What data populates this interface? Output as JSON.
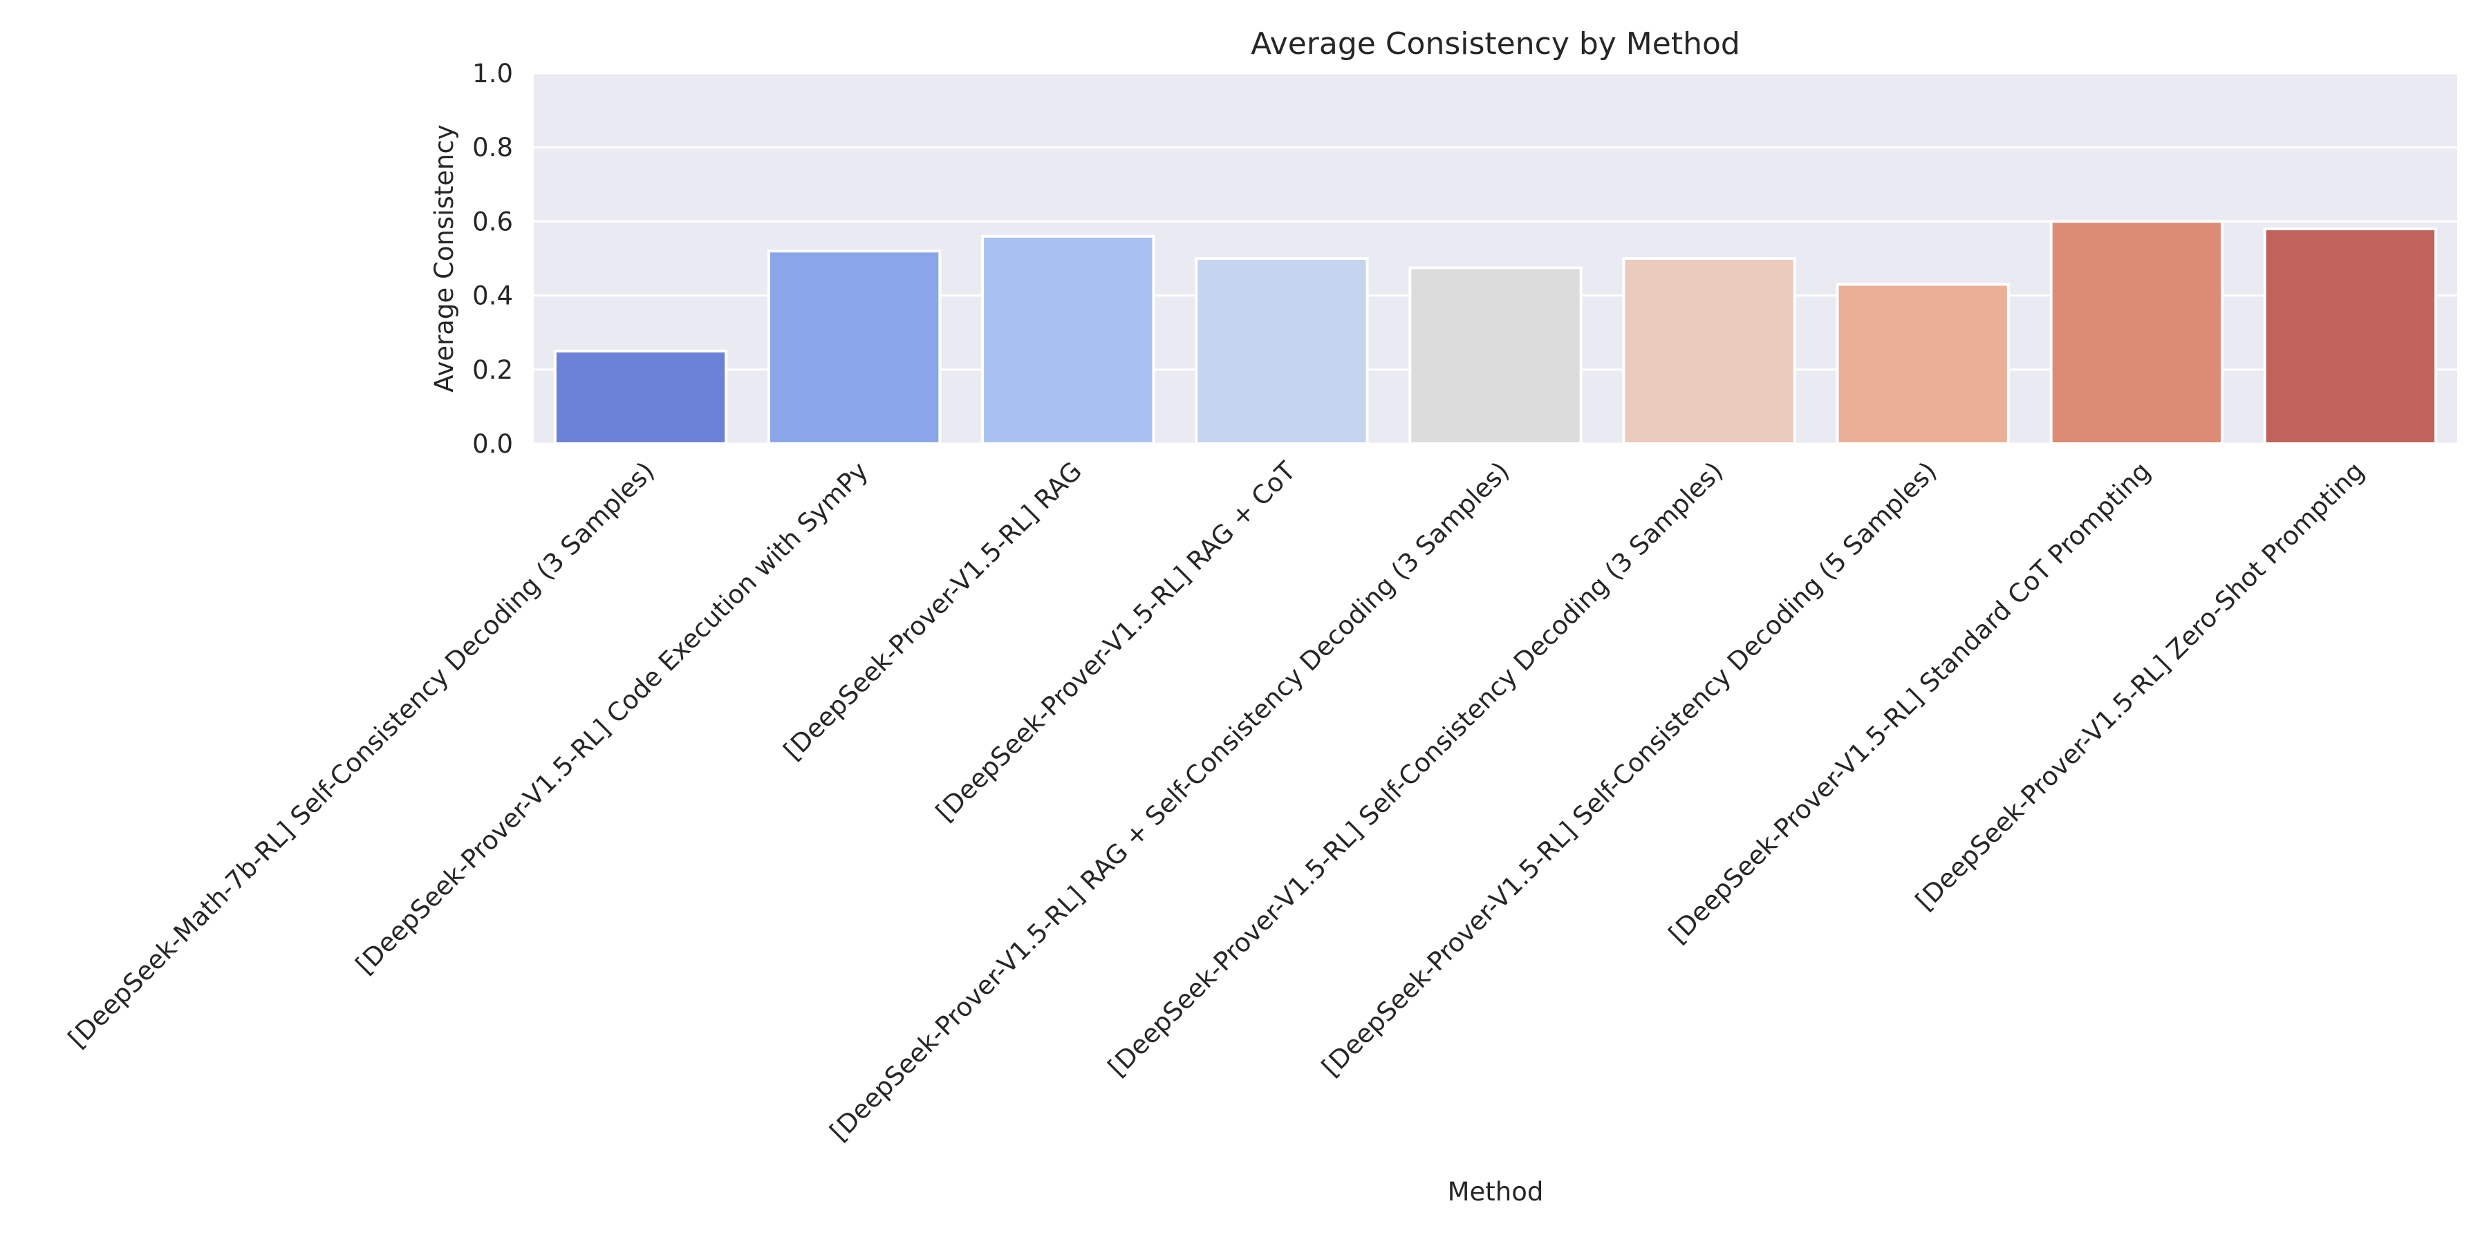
{
  "chart_data": {
    "type": "bar",
    "title": "Average Consistency by Method",
    "xlabel": "Method",
    "ylabel": "Average Consistency",
    "ylim": [
      0,
      1.0
    ],
    "yticks": [
      "0.0",
      "0.2",
      "0.4",
      "0.6",
      "0.8",
      "1.0"
    ],
    "grid": true,
    "categories": [
      "[DeepSeek-Math-7b-RL] Self-Consistency Decoding (3 Samples)",
      "[DeepSeek-Prover-V1.5-RL] Code Execution with SymPy",
      "[DeepSeek-Prover-V1.5-RL] RAG",
      "[DeepSeek-Prover-V1.5-RL] RAG + CoT",
      "[DeepSeek-Prover-V1.5-RL] RAG + Self-Consistency Decoding (3 Samples)",
      "[DeepSeek-Prover-V1.5-RL] Self-Consistency Decoding (3 Samples)",
      "[DeepSeek-Prover-V1.5-RL] Self-Consistency Decoding (5 Samples)",
      "[DeepSeek-Prover-V1.5-RL] Standard CoT Prompting",
      "[DeepSeek-Prover-V1.5-RL] Zero-Shot Prompting"
    ],
    "values": [
      0.25,
      0.52,
      0.56,
      0.5,
      0.475,
      0.5,
      0.43,
      0.6,
      0.58
    ],
    "colors": [
      "#6c82d6",
      "#8aa5e9",
      "#a9c0f3",
      "#c5d4ef",
      "#dcdcdc",
      "#eacbbd",
      "#eaaf96",
      "#dc8c74",
      "#c1635a"
    ]
  }
}
